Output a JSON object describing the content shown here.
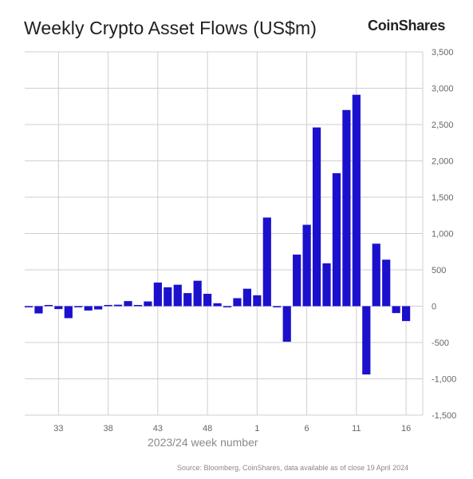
{
  "title": "Weekly Crypto Asset Flows (US$m)",
  "brand": "CoinShares",
  "source": "Source: Bloomberg, CoinShares, data available as of close 19 April 2024",
  "chart_data": {
    "type": "bar",
    "xlabel": "2023/24 week number",
    "ylabel": "",
    "ylim": [
      -1500,
      3500
    ],
    "y_ticks": [
      3500,
      3000,
      2500,
      2000,
      1500,
      1000,
      500,
      0,
      -500,
      -1000,
      -1500
    ],
    "y_tick_labels": [
      "3,500",
      "3,000",
      "2,500",
      "2,000",
      "1,500",
      "1,000",
      "500",
      "0",
      "-500",
      "-1,000",
      "-1,500"
    ],
    "x_tick_labels": [
      "33",
      "38",
      "43",
      "48",
      "1",
      "6",
      "11",
      "16"
    ],
    "grid": true,
    "bar_color": "#1b11cc",
    "categories": [
      "30",
      "31",
      "32",
      "33",
      "34",
      "35",
      "36",
      "37",
      "38",
      "39",
      "40",
      "41",
      "42",
      "43",
      "44",
      "45",
      "46",
      "47",
      "48",
      "49",
      "50",
      "51",
      "52",
      "1",
      "2",
      "3",
      "4",
      "5",
      "6",
      "7",
      "8",
      "9",
      "10",
      "11",
      "12",
      "13",
      "14",
      "15",
      "16"
    ],
    "values": [
      -15,
      -100,
      15,
      -40,
      -165,
      -5,
      -60,
      -45,
      0,
      20,
      70,
      10,
      65,
      325,
      260,
      295,
      180,
      350,
      170,
      40,
      -10,
      110,
      240,
      150,
      1220,
      -10,
      -490,
      710,
      1120,
      2460,
      590,
      1830,
      2700,
      2910,
      -940,
      860,
      640,
      -95,
      -205
    ]
  }
}
